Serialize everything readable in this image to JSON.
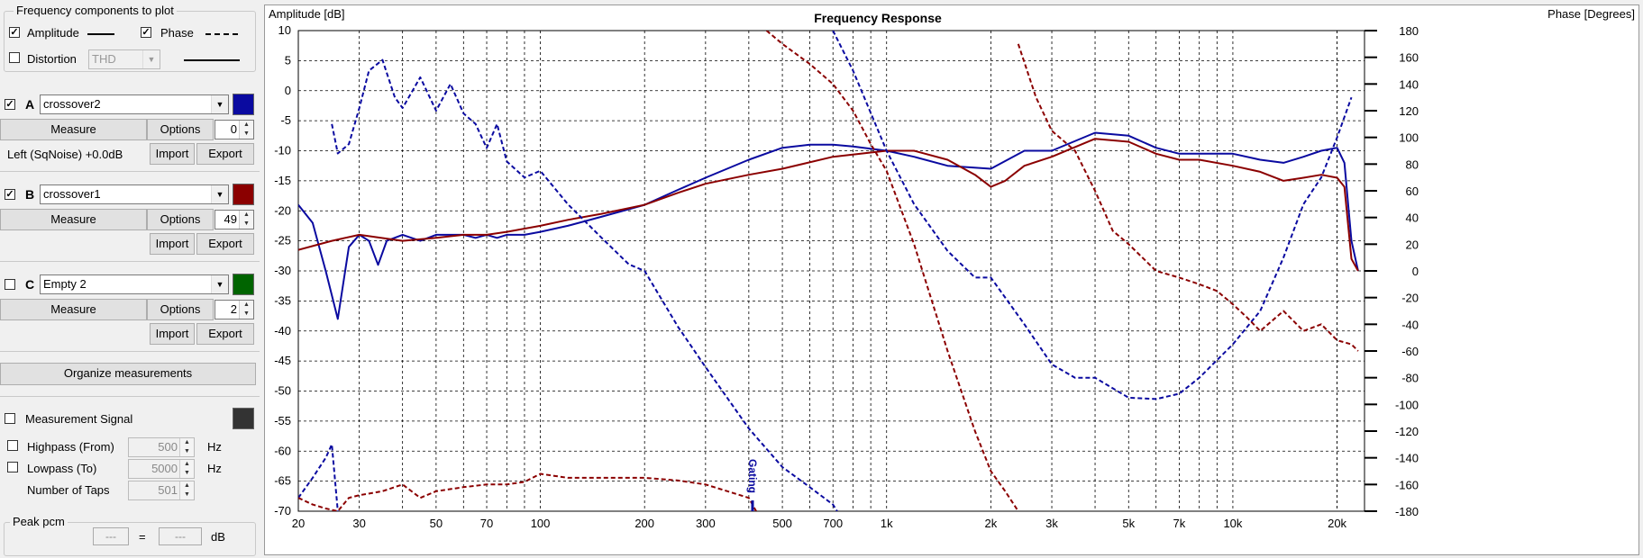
{
  "freq_group": {
    "title": "Frequency components to plot",
    "amplitude_label": "Amplitude",
    "phase_label": "Phase",
    "distortion_label": "Distortion",
    "distortion_value": "THD"
  },
  "measurements": [
    {
      "letter": "A",
      "name": "crossover2",
      "checked": true,
      "color": "#0a0aa0",
      "measure_label": "Measure",
      "options_label": "Options",
      "spin_value": "0",
      "info": "Left (SqNoise) +0.0dB",
      "import_label": "Import",
      "export_label": "Export"
    },
    {
      "letter": "B",
      "name": "crossover1",
      "checked": true,
      "color": "#8b0000",
      "measure_label": "Measure",
      "options_label": "Options",
      "spin_value": "49",
      "info": "",
      "import_label": "Import",
      "export_label": "Export"
    },
    {
      "letter": "C",
      "name": "Empty 2",
      "checked": false,
      "color": "#006400",
      "measure_label": "Measure",
      "options_label": "Options",
      "spin_value": "2",
      "info": "",
      "import_label": "Import",
      "export_label": "Export"
    }
  ],
  "organize_label": "Organize measurements",
  "signal": {
    "label": "Measurement Signal",
    "color": "#333333",
    "highpass_label": "Highpass (From)",
    "highpass_value": "500",
    "lowpass_label": "Lowpass (To)",
    "lowpass_value": "5000",
    "hz": "Hz",
    "taps_label": "Number of Taps",
    "taps_value": "501"
  },
  "peak": {
    "title": "Peak pcm",
    "value1": "---",
    "equals": "=",
    "value2": "---",
    "unit": "dB"
  },
  "chart_data": {
    "type": "line",
    "title": "Frequency Response",
    "ylabel_left": "Amplitude [dB]",
    "ylabel_right": "Phase [Degrees]",
    "xscale": "log",
    "xlim": [
      20,
      24000
    ],
    "ylim_left": [
      -70,
      10
    ],
    "ylim_right": [
      -180,
      180
    ],
    "grid": true,
    "x_ticks": [
      20,
      30,
      50,
      70,
      100,
      200,
      300,
      500,
      700,
      1000,
      2000,
      3000,
      5000,
      7000,
      10000,
      20000
    ],
    "x_tick_labels": [
      "20",
      "30",
      "50",
      "70",
      "100",
      "200",
      "300",
      "500",
      "700",
      "1k",
      "2k",
      "3k",
      "5k",
      "7k",
      "10k",
      "20k"
    ],
    "y_left_ticks": [
      10,
      5,
      0,
      -5,
      -10,
      -15,
      -20,
      -25,
      -30,
      -35,
      -40,
      -45,
      -50,
      -55,
      -60,
      -65,
      -70
    ],
    "y_right_ticks": [
      180,
      160,
      140,
      120,
      100,
      80,
      60,
      40,
      20,
      0,
      -20,
      -40,
      -60,
      -80,
      -100,
      -120,
      -140,
      -160,
      -180
    ],
    "marker": {
      "label": "Gating",
      "x": 410
    },
    "series": [
      {
        "color": "#0a0aa0",
        "dash": false,
        "axis": "left",
        "x": [
          20,
          22,
          24,
          26,
          28,
          30,
          32,
          34,
          36,
          40,
          45,
          50,
          55,
          60,
          65,
          70,
          75,
          80,
          90,
          100,
          120,
          150,
          200,
          250,
          300,
          400,
          500,
          600,
          700,
          800,
          1000,
          1200,
          1500,
          2000,
          2500,
          3000,
          4000,
          5000,
          6000,
          7000,
          8000,
          10000,
          12000,
          14000,
          16000,
          18000,
          20000,
          21000,
          22000,
          23000
        ],
        "y": [
          -19,
          -22,
          -30,
          -38,
          -26,
          -24,
          -25,
          -29,
          -25,
          -24,
          -25,
          -24,
          -24,
          -24,
          -24.5,
          -24,
          -24.5,
          -24,
          -24,
          -23.5,
          -22.5,
          -21,
          -19,
          -16.5,
          -14.5,
          -11.5,
          -9.5,
          -9,
          -9,
          -9.3,
          -10,
          -11,
          -12.5,
          -13,
          -10,
          -10,
          -7,
          -7.5,
          -9.5,
          -10.5,
          -10.5,
          -10.5,
          -11.5,
          -12,
          -11,
          -10,
          -9.5,
          -12,
          -25,
          -30
        ]
      },
      {
        "color": "#8b0000",
        "dash": false,
        "axis": "left",
        "x": [
          20,
          25,
          30,
          40,
          50,
          60,
          70,
          80,
          100,
          120,
          150,
          200,
          250,
          300,
          400,
          500,
          700,
          1000,
          1200,
          1500,
          1800,
          2000,
          2200,
          2500,
          3000,
          4000,
          5000,
          6000,
          7000,
          8000,
          10000,
          12000,
          14000,
          16000,
          18000,
          20000,
          21000,
          22000,
          23000
        ],
        "y": [
          -26.5,
          -25,
          -24,
          -25,
          -24.5,
          -24,
          -24,
          -23.5,
          -22.5,
          -21.5,
          -20.5,
          -19,
          -17,
          -15.5,
          -14,
          -13,
          -11,
          -10,
          -10,
          -11.5,
          -14,
          -16,
          -15,
          -12.5,
          -11,
          -8,
          -8.5,
          -10.5,
          -11.5,
          -11.5,
          -12.5,
          -13.5,
          -15,
          -14.5,
          -14,
          -14.5,
          -16,
          -28,
          -30
        ]
      },
      {
        "color": "#0a0aa0",
        "dash": true,
        "axis": "right",
        "x": [
          25,
          26,
          28,
          30,
          32,
          35,
          38,
          40,
          45,
          50,
          55,
          60,
          65,
          70,
          75,
          80,
          90,
          100,
          120,
          150,
          180,
          200,
          250,
          300,
          400,
          500,
          600,
          700,
          720
        ],
        "y": [
          110,
          88,
          95,
          122,
          150,
          158,
          130,
          122,
          145,
          120,
          140,
          118,
          110,
          92,
          110,
          82,
          70,
          75,
          50,
          25,
          5,
          0,
          -42,
          -72,
          -118,
          -147,
          -162,
          -175,
          -180
        ]
      },
      {
        "color": "#0a0aa0",
        "dash": true,
        "axis": "right",
        "x": [
          20,
          22,
          24,
          25,
          26
        ],
        "y": [
          -170,
          -155,
          -140,
          -130,
          -180
        ]
      },
      {
        "color": "#0a0aa0",
        "dash": true,
        "axis": "right",
        "x": [
          700,
          800,
          1000,
          1200,
          1500,
          1800,
          2000,
          2500,
          3000,
          3500,
          4000,
          5000,
          6000,
          7000,
          8000,
          10000,
          12000,
          14000,
          16000,
          18000,
          20000,
          22000
        ],
        "y": [
          180,
          150,
          90,
          50,
          15,
          -5,
          -5,
          -40,
          -70,
          -80,
          -80,
          -95,
          -96,
          -92,
          -80,
          -55,
          -30,
          10,
          50,
          70,
          100,
          130
        ]
      },
      {
        "color": "#8b0000",
        "dash": true,
        "axis": "right",
        "x": [
          20,
          22,
          24,
          26,
          28,
          30,
          35,
          40,
          45,
          50,
          60,
          70,
          80,
          90,
          100,
          120,
          150,
          200,
          250,
          300,
          400,
          420
        ],
        "y": [
          -170,
          -175,
          -178,
          -180,
          -170,
          -168,
          -165,
          -160,
          -170,
          -165,
          -162,
          -160,
          -160,
          -158,
          -152,
          -155,
          -155,
          -155,
          -157,
          -160,
          -170,
          -180
        ]
      },
      {
        "color": "#8b0000",
        "dash": true,
        "axis": "right",
        "x": [
          450,
          500,
          600,
          700,
          800,
          900,
          1000,
          1200,
          1500,
          1800,
          2000,
          2200,
          2400
        ],
        "y": [
          180,
          170,
          155,
          140,
          120,
          95,
          75,
          20,
          -60,
          -120,
          -150,
          -165,
          -180
        ]
      },
      {
        "color": "#8b0000",
        "dash": true,
        "axis": "right",
        "x": [
          2400,
          2700,
          3000,
          3500,
          4000,
          4500,
          5000,
          6000,
          7000,
          8000,
          9000,
          10000,
          11000,
          12000,
          14000,
          16000,
          18000,
          20000,
          22000,
          23000
        ],
        "y": [
          170,
          130,
          105,
          90,
          60,
          30,
          20,
          0,
          -5,
          -10,
          -15,
          -25,
          -35,
          -45,
          -30,
          -45,
          -40,
          -52,
          -55,
          -60
        ]
      }
    ]
  }
}
